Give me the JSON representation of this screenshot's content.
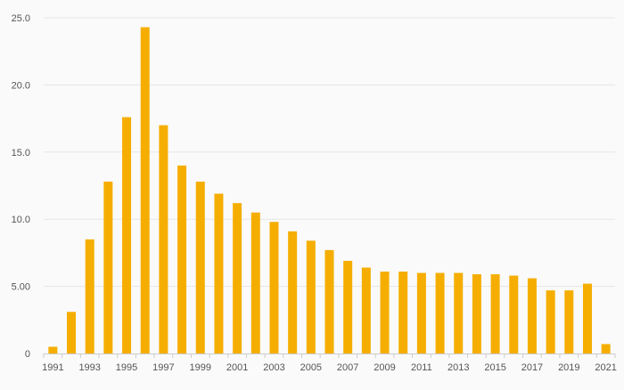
{
  "chart_data": {
    "type": "bar",
    "title": "",
    "xlabel": "",
    "ylabel": "",
    "categories": [
      "1991",
      "1992",
      "1993",
      "1994",
      "1995",
      "1996",
      "1997",
      "1998",
      "1999",
      "2000",
      "2001",
      "2002",
      "2003",
      "2004",
      "2005",
      "2006",
      "2007",
      "2008",
      "2009",
      "2010",
      "2011",
      "2012",
      "2013",
      "2014",
      "2015",
      "2016",
      "2017",
      "2018",
      "2019",
      "2020",
      "2021"
    ],
    "x_tick_labels": [
      "1991",
      "1993",
      "1995",
      "1997",
      "1999",
      "2001",
      "2003",
      "2005",
      "2007",
      "2009",
      "2011",
      "2013",
      "2015",
      "2017",
      "2019",
      "2021"
    ],
    "values": [
      0.5,
      3.1,
      8.5,
      12.8,
      17.6,
      24.3,
      17.0,
      14.0,
      12.8,
      11.9,
      11.2,
      10.5,
      9.8,
      9.1,
      8.4,
      7.7,
      6.9,
      6.4,
      6.1,
      6.1,
      6.0,
      6.0,
      6.0,
      5.9,
      5.9,
      5.8,
      5.6,
      4.7,
      4.7,
      5.2,
      0.7
    ],
    "y_ticks": [
      0,
      5,
      10,
      15,
      20,
      25
    ],
    "y_tick_labels": [
      "0",
      "5.00",
      "10.0",
      "15.0",
      "20.0",
      "25.0"
    ],
    "ylim": [
      0,
      25
    ],
    "grid": true,
    "legend": "none",
    "bar_color": "#f5ae00",
    "grid_color": "#e6e6e6",
    "axis_color": "#cccccc",
    "text_color": "#555555",
    "background": "#fafafa"
  }
}
